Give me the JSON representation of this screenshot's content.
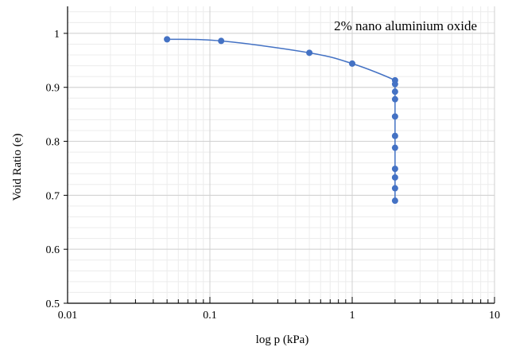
{
  "chart_data": {
    "type": "scatter",
    "title": "",
    "annotation": "2% nano aluminium oxide",
    "xlabel": "log p (kPa)",
    "ylabel": "Void Ratio (e)",
    "xscale": "log",
    "xlim": [
      0.01,
      10
    ],
    "ylim": [
      0.5,
      1.05
    ],
    "x_ticks": [
      0.01,
      0.1,
      1,
      10
    ],
    "x_tick_labels": [
      "0.01",
      "0.1",
      "1",
      "10"
    ],
    "y_ticks": [
      0.5,
      0.6,
      0.7,
      0.8,
      0.9,
      1
    ],
    "y_tick_labels": [
      "0.5",
      "0.6",
      "0.7",
      "0.8",
      "0.9",
      "1"
    ],
    "grid": true,
    "series": [
      {
        "color": "#4472c4",
        "points": [
          {
            "x": 0.05,
            "y": 0.989
          },
          {
            "x": 0.12,
            "y": 0.986
          },
          {
            "x": 0.5,
            "y": 0.964
          },
          {
            "x": 1.0,
            "y": 0.944
          },
          {
            "x": 2.0,
            "y": 0.913
          },
          {
            "x": 2.0,
            "y": 0.906
          },
          {
            "x": 2.0,
            "y": 0.892
          },
          {
            "x": 2.0,
            "y": 0.878
          },
          {
            "x": 2.0,
            "y": 0.846
          },
          {
            "x": 2.0,
            "y": 0.81
          },
          {
            "x": 2.0,
            "y": 0.788
          },
          {
            "x": 2.0,
            "y": 0.749
          },
          {
            "x": 2.0,
            "y": 0.733
          },
          {
            "x": 2.0,
            "y": 0.713
          },
          {
            "x": 2.0,
            "y": 0.69
          }
        ]
      }
    ]
  }
}
